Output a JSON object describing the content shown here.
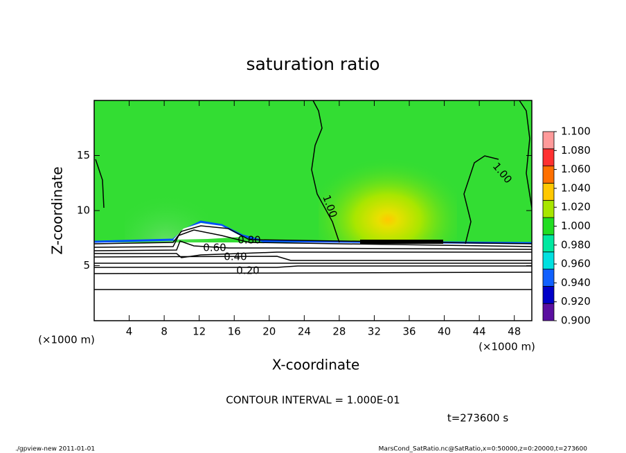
{
  "chart_data": {
    "type": "contour",
    "title": "saturation ratio",
    "xlabel": "X-coordinate",
    "ylabel": "Z-coordinate",
    "x_unit": "(×1000 m)",
    "xlim": [
      0,
      50
    ],
    "ylim": [
      0,
      20
    ],
    "xticks": [
      4,
      8,
      12,
      16,
      20,
      24,
      28,
      32,
      36,
      40,
      44,
      48
    ],
    "yticks": [
      5,
      10,
      15
    ],
    "contour_labels": [
      "1.00",
      "1.00",
      "0.80",
      "0.60",
      "0.40",
      "0.20"
    ],
    "contour_interval": "CONTOUR INTERVAL = 1.000E-01",
    "time": "t=273600 s",
    "colorbar": {
      "lim": [
        0.9,
        1.1
      ],
      "ticks": [
        {
          "value": 0.9,
          "label": "0.900"
        },
        {
          "value": 0.92,
          "label": "0.920"
        },
        {
          "value": 0.94,
          "label": "0.940"
        },
        {
          "value": 0.96,
          "label": "0.960"
        },
        {
          "value": 0.98,
          "label": "0.980"
        },
        {
          "value": 1.0,
          "label": "1.000"
        },
        {
          "value": 1.02,
          "label": "1.020"
        },
        {
          "value": 1.04,
          "label": "1.040"
        },
        {
          "value": 1.06,
          "label": "1.060"
        },
        {
          "value": 1.08,
          "label": "1.080"
        },
        {
          "value": 1.1,
          "label": "1.100"
        }
      ],
      "colors": [
        "#5a0fa0",
        "#0000c8",
        "#1060ff",
        "#00e0e0",
        "#00e8a0",
        "#22dd22",
        "#a8e600",
        "#ffc800",
        "#ff7000",
        "#ff3030",
        "#ff9a9a"
      ]
    },
    "footer_left": "./gpview-new   2011-01-01",
    "footer_right": "MarsCond_SatRatio.nc@SatRatio,x=0:50000,z=0:20000,t=273600"
  }
}
